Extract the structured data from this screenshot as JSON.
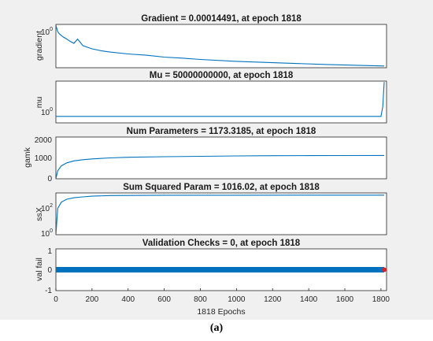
{
  "chart_data": [
    {
      "type": "line",
      "title": "Gradient = 0.00014491, at epoch 1818",
      "ylabel": "gradient",
      "xlim": [
        0,
        1818
      ],
      "yscale": "log",
      "ytick_labels": [
        {
          "base": "10",
          "exp": "0"
        }
      ],
      "series": [
        {
          "x": [
            0,
            10,
            20,
            40,
            60,
            80,
            100,
            120,
            150,
            200,
            250,
            300,
            400,
            500,
            600,
            700,
            800,
            1000,
            1200,
            1500,
            1818
          ],
          "y": [
            1.0,
            0.25,
            0.15,
            0.08,
            0.05,
            0.03,
            0.02,
            0.05,
            0.012,
            0.006,
            0.004,
            0.003,
            0.002,
            0.0015,
            0.001,
            0.0008,
            0.0006,
            0.0004,
            0.0003,
            0.0002,
            0.00014491
          ]
        }
      ]
    },
    {
      "type": "line",
      "title": "Mu = 50000000000, at epoch 1818",
      "ylabel": "mu",
      "xlim": [
        0,
        1818
      ],
      "yscale": "log",
      "ytick_labels": [
        {
          "base": "10",
          "exp": "0"
        }
      ],
      "series": [
        {
          "x": [
            0,
            100,
            200,
            400,
            800,
            1200,
            1600,
            1800,
            1810,
            1818
          ],
          "y": [
            1,
            1,
            1,
            1,
            1,
            1,
            1,
            1,
            1000,
            50000000000
          ]
        }
      ]
    },
    {
      "type": "line",
      "title": "Num Parameters = 1173.3185, at epoch 1818",
      "ylabel": "gamk",
      "xlim": [
        0,
        1818
      ],
      "ylim": [
        0,
        2000
      ],
      "ytick_labels": [
        "0",
        "1000",
        "2000"
      ],
      "series": [
        {
          "x": [
            0,
            10,
            30,
            60,
            100,
            150,
            200,
            300,
            400,
            600,
            800,
            1000,
            1200,
            1400,
            1600,
            1818
          ],
          "y": [
            0,
            400,
            650,
            800,
            900,
            960,
            1000,
            1050,
            1080,
            1110,
            1130,
            1150,
            1160,
            1165,
            1170,
            1173.3185
          ]
        }
      ]
    },
    {
      "type": "line",
      "title": "Sum Squared Param = 1016.02, at epoch 1818",
      "ylabel": "ssX",
      "xlim": [
        0,
        1818
      ],
      "yscale": "log",
      "ytick_labels": [
        {
          "base": "10",
          "exp": "0"
        },
        {
          "base": "10",
          "exp": "2"
        }
      ],
      "series": [
        {
          "x": [
            0,
            10,
            30,
            60,
            100,
            150,
            200,
            300,
            600,
            1000,
            1400,
            1818
          ],
          "y": [
            1,
            100,
            300,
            500,
            650,
            750,
            850,
            950,
            1000,
            1010,
            1015,
            1016.02
          ]
        }
      ]
    },
    {
      "type": "line",
      "title": "Validation Checks = 0, at epoch 1818",
      "ylabel": "val fail",
      "xlabel": "1818 Epochs",
      "xlim": [
        0,
        1818
      ],
      "ylim": [
        -1,
        1
      ],
      "ytick_labels": [
        "-1",
        "0",
        "1"
      ],
      "xtick_labels": [
        "0",
        "200",
        "400",
        "600",
        "800",
        "1000",
        "1200",
        "1400",
        "1600",
        "1800"
      ],
      "series": [
        {
          "x": [
            0,
            1818
          ],
          "y": [
            0,
            0
          ]
        }
      ],
      "marker": {
        "x": 1818,
        "y": 0,
        "color": "#d62728"
      }
    }
  ],
  "colors": {
    "line": "#0072bd",
    "marker": "#d62728",
    "figure_bg": "#f0f0f0",
    "axes_bg": "#ffffff"
  },
  "caption": {
    "text": "(a)"
  }
}
